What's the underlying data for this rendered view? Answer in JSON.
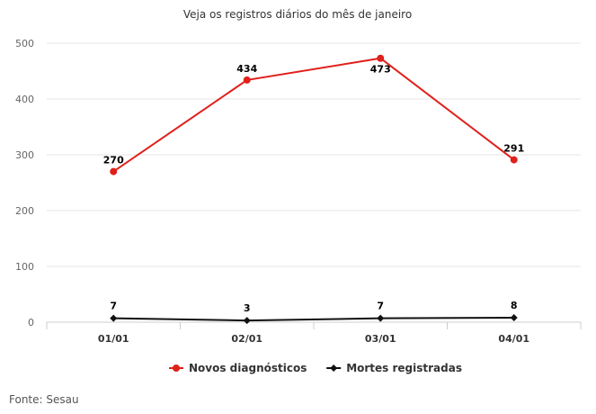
{
  "chart_data": {
    "type": "line",
    "title": "Veja os registros diários do mês de janeiro",
    "categories": [
      "01/01",
      "02/01",
      "03/01",
      "04/01"
    ],
    "ylim": [
      0,
      500
    ],
    "yticks": [
      "0",
      "100",
      "200",
      "300",
      "400",
      "500"
    ],
    "grid": true,
    "legend_position": "bottom",
    "series": [
      {
        "name": "Novos diagnósticos",
        "values": [
          270,
          434,
          473,
          291
        ],
        "color": "#e0201b",
        "marker": "circle"
      },
      {
        "name": "Mortes registradas",
        "values": [
          7,
          3,
          7,
          8
        ],
        "color": "#111111",
        "marker": "diamond"
      }
    ]
  },
  "source": "Fonte: Sesau"
}
